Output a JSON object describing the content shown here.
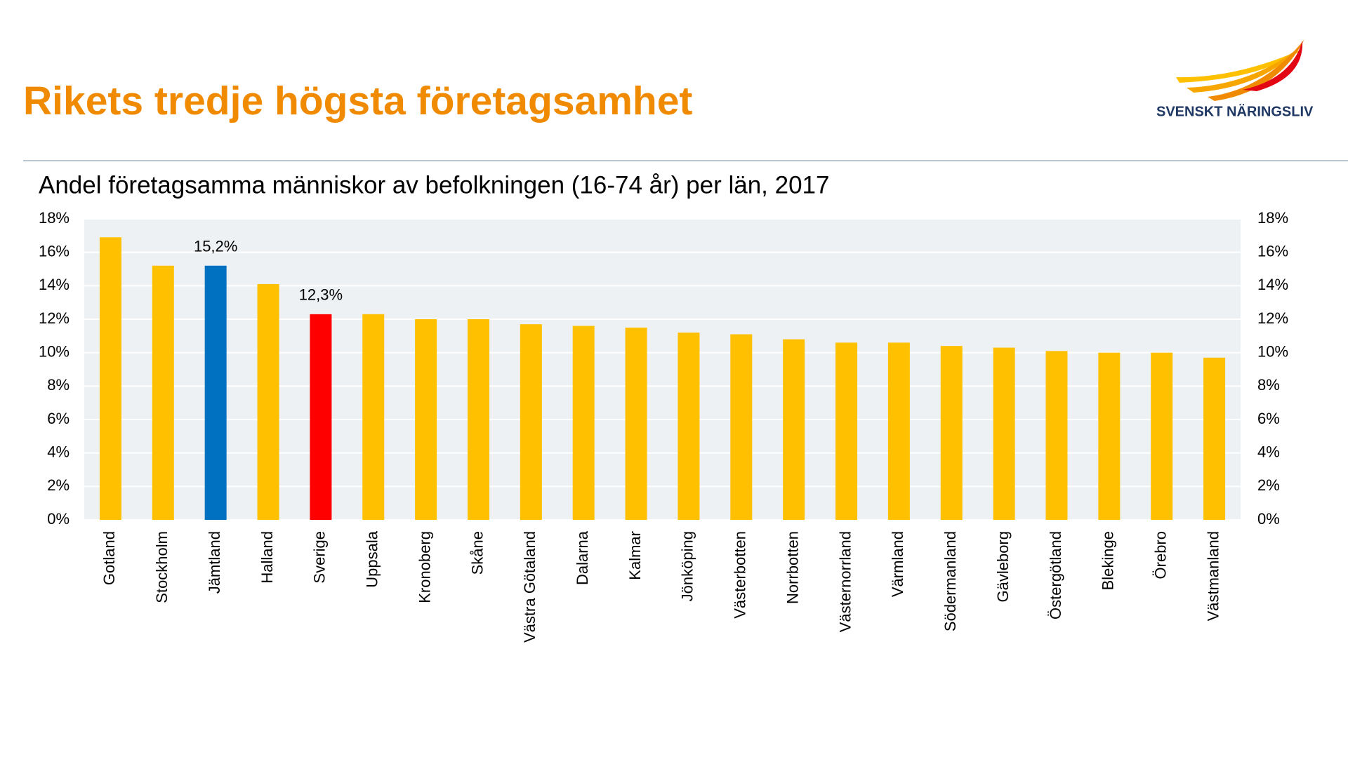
{
  "page": {
    "title": "Rikets tredje högsta företagsamhet",
    "brand": "SVENSKT NÄRINGSLIV"
  },
  "chart_data": {
    "type": "bar",
    "title": "Andel företagsamma människor av befolkningen (16-74 år) per län, 2017",
    "categories": [
      "Gotland",
      "Stockholm",
      "Jämtland",
      "Halland",
      "Sverige",
      "Uppsala",
      "Kronoberg",
      "Skåne",
      "Västra Götaland",
      "Dalarna",
      "Kalmar",
      "Jönköping",
      "Västerbotten",
      "Norrbotten",
      "Västernorrland",
      "Värmland",
      "Södermanland",
      "Gävleborg",
      "Östergötland",
      "Blekinge",
      "Örebro",
      "Västmanland"
    ],
    "values": [
      16.9,
      15.2,
      15.2,
      14.1,
      12.3,
      12.3,
      12.0,
      12.0,
      11.7,
      11.6,
      11.5,
      11.2,
      11.1,
      10.8,
      10.6,
      10.6,
      10.4,
      10.3,
      10.1,
      10.0,
      10.0,
      9.7
    ],
    "value_labels": [
      null,
      null,
      "15,2%",
      null,
      "12,3%",
      null,
      null,
      null,
      null,
      null,
      null,
      null,
      null,
      null,
      null,
      null,
      null,
      null,
      null,
      null,
      null,
      null
    ],
    "colors": [
      "#ffc000",
      "#ffc000",
      "#0070c0",
      "#ffc000",
      "#ff0000",
      "#ffc000",
      "#ffc000",
      "#ffc000",
      "#ffc000",
      "#ffc000",
      "#ffc000",
      "#ffc000",
      "#ffc000",
      "#ffc000",
      "#ffc000",
      "#ffc000",
      "#ffc000",
      "#ffc000",
      "#ffc000",
      "#ffc000",
      "#ffc000",
      "#ffc000"
    ],
    "ylim": [
      0,
      18
    ],
    "yticks": [
      {
        "value": 0,
        "label": "0%"
      },
      {
        "value": 2,
        "label": "2%"
      },
      {
        "value": 4,
        "label": "4%"
      },
      {
        "value": 6,
        "label": "6%"
      },
      {
        "value": 8,
        "label": "8%"
      },
      {
        "value": 10,
        "label": "10%"
      },
      {
        "value": 12,
        "label": "12%"
      },
      {
        "value": 14,
        "label": "14%"
      },
      {
        "value": 16,
        "label": "16%"
      },
      {
        "value": 18,
        "label": "18%"
      }
    ],
    "y2lim": [
      0,
      18
    ],
    "y2ticks": [
      {
        "value": 0,
        "label": "0%"
      },
      {
        "value": 2,
        "label": "2%"
      },
      {
        "value": 4,
        "label": "4%"
      },
      {
        "value": 6,
        "label": "6%"
      },
      {
        "value": 8,
        "label": "8%"
      },
      {
        "value": 10,
        "label": "10%"
      },
      {
        "value": 12,
        "label": "12%"
      },
      {
        "value": 14,
        "label": "14%"
      },
      {
        "value": 16,
        "label": "16%"
      },
      {
        "value": 18,
        "label": "18%"
      }
    ],
    "grid": true
  }
}
